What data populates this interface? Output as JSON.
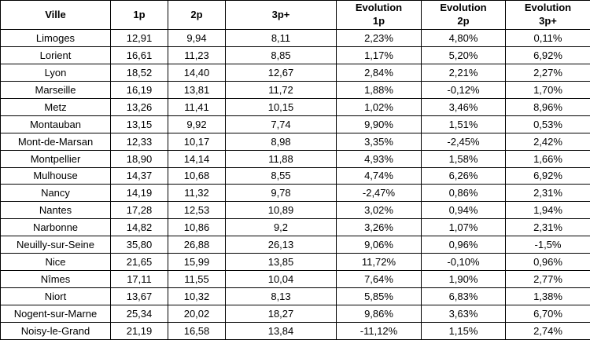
{
  "chart_data": {
    "type": "table",
    "columns": [
      "Ville",
      "1p",
      "2p",
      "3p+",
      "Evolution\n1p",
      "Evolution\n2p",
      "Evolution\n3p+"
    ],
    "rows": [
      [
        "Limoges",
        "12,91",
        "9,94",
        "8,11",
        "2,23%",
        "4,80%",
        "0,11%"
      ],
      [
        "Lorient",
        "16,61",
        "11,23",
        "8,85",
        "1,17%",
        "5,20%",
        "6,92%"
      ],
      [
        "Lyon",
        "18,52",
        "14,40",
        "12,67",
        "2,84%",
        "2,21%",
        "2,27%"
      ],
      [
        "Marseille",
        "16,19",
        "13,81",
        "11,72",
        "1,88%",
        "-0,12%",
        "1,70%"
      ],
      [
        "Metz",
        "13,26",
        "11,41",
        "10,15",
        "1,02%",
        "3,46%",
        "8,96%"
      ],
      [
        "Montauban",
        "13,15",
        "9,92",
        "7,74",
        "9,90%",
        "1,51%",
        "0,53%"
      ],
      [
        "Mont-de-Marsan",
        "12,33",
        "10,17",
        "8,98",
        "3,35%",
        "-2,45%",
        "2,42%"
      ],
      [
        "Montpellier",
        "18,90",
        "14,14",
        "11,88",
        "4,93%",
        "1,58%",
        "1,66%"
      ],
      [
        "Mulhouse",
        "14,37",
        "10,68",
        "8,55",
        "4,74%",
        "6,26%",
        "6,92%"
      ],
      [
        "Nancy",
        "14,19",
        "11,32",
        "9,78",
        "-2,47%",
        "0,86%",
        "2,31%"
      ],
      [
        "Nantes",
        "17,28",
        "12,53",
        "10,89",
        "3,02%",
        "0,94%",
        "1,94%"
      ],
      [
        "Narbonne",
        "14,82",
        "10,86",
        "9,2",
        "3,26%",
        "1,07%",
        "2,31%"
      ],
      [
        "Neuilly-sur-Seine",
        "35,80",
        "26,88",
        "26,13",
        "9,06%",
        "0,96%",
        "-1,5%"
      ],
      [
        "Nice",
        "21,65",
        "15,99",
        "13,85",
        "11,72%",
        "-0,10%",
        "0,96%"
      ],
      [
        "Nîmes",
        "17,11",
        "11,55",
        "10,04",
        "7,64%",
        "1,90%",
        "2,77%"
      ],
      [
        "Niort",
        "13,67",
        "10,32",
        "8,13",
        "5,85%",
        "6,83%",
        "1,38%"
      ],
      [
        "Nogent-sur-Marne",
        "25,34",
        "20,02",
        "18,27",
        "9,86%",
        "3,63%",
        "6,70%"
      ],
      [
        "Noisy-le-Grand",
        "21,19",
        "16,58",
        "13,84",
        "-11,12%",
        "1,15%",
        "2,74%"
      ]
    ]
  }
}
